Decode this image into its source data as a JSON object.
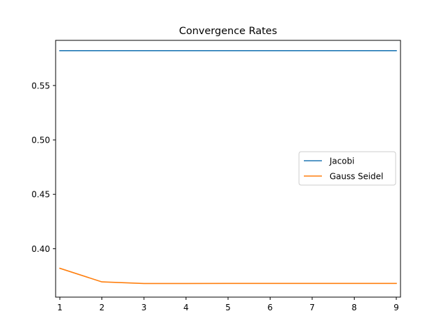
{
  "chart_data": {
    "type": "line",
    "title": "Convergence Rates",
    "xlabel": "",
    "ylabel": "",
    "x": [
      1,
      2,
      3,
      4,
      5,
      6,
      7,
      8,
      9
    ],
    "xlim": [
      0.9,
      9.1
    ],
    "ylim": [
      0.3555,
      0.5915
    ],
    "xticks": [
      1,
      2,
      3,
      4,
      5,
      6,
      7,
      8,
      9
    ],
    "yticks": [
      0.4,
      0.45,
      0.5,
      0.55
    ],
    "ytick_labels": [
      "0.40",
      "0.45",
      "0.50",
      "0.55"
    ],
    "grid": false,
    "legend_position": "center-right",
    "series": [
      {
        "name": "Jacobi",
        "color": "#1f77b4",
        "values": [
          0.582,
          0.582,
          0.582,
          0.582,
          0.582,
          0.582,
          0.582,
          0.582,
          0.582
        ]
      },
      {
        "name": "Gauss Seidel",
        "color": "#ff7f0e",
        "values": [
          0.382,
          0.3695,
          0.368,
          0.368,
          0.3681,
          0.3681,
          0.3681,
          0.3681,
          0.3681
        ]
      }
    ]
  }
}
